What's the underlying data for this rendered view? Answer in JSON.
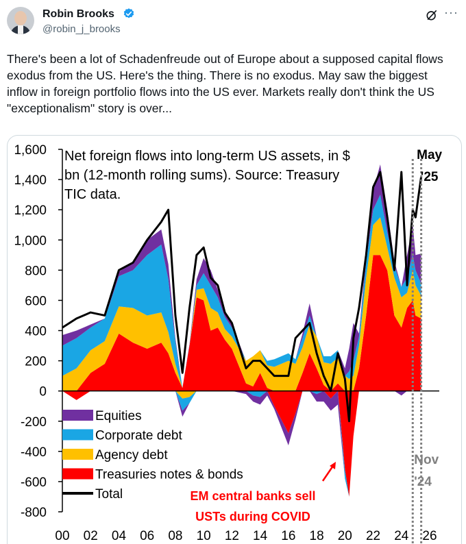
{
  "author": {
    "name": "Robin Brooks",
    "handle": "@robin_j_brooks"
  },
  "menu": {
    "more_label": "···"
  },
  "tweet": {
    "text": "There's been a lot of Schadenfreude out of Europe about a supposed capital flows exodus from the US. Here's the thing. There is no exodus. May saw the biggest inflow in foreign portfolio flows into the US ever. Markets really don't think the US \"exceptionalism\" story is over..."
  },
  "colors": {
    "equities": "#7030a0",
    "corporate_debt": "#1aa6e4",
    "agency_debt": "#ffc000",
    "treasuries": "#ff0000",
    "total": "#000000",
    "marker": "#808080",
    "annotation": "#ff0000"
  },
  "icons": {
    "verified": "verified-badge-icon",
    "grok": "grok-icon",
    "more": "more-icon"
  },
  "chart_data": {
    "type": "area",
    "title_lines": [
      "Net foreign flows into long-term US assets, in $",
      "bn (12-month rolling sums). Source:  Treasury",
      "TIC data."
    ],
    "ylim": [
      -800,
      1600
    ],
    "yticks": [
      "1,600",
      "1,400",
      "1,200",
      "1,000",
      "800",
      "600",
      "400",
      "200",
      "0",
      "-200",
      "-400",
      "-600",
      "-800"
    ],
    "xticks": [
      "00",
      "02",
      "04",
      "06",
      "08",
      "10",
      "12",
      "14",
      "16",
      "18",
      "20",
      "22",
      "24",
      "26"
    ],
    "legend": [
      "Equities",
      "Corporate debt",
      "Agency debt",
      "Treasuries notes & bonds",
      "Total"
    ],
    "x": [
      2000.0,
      2001.0,
      2002.0,
      2003.0,
      2004.0,
      2005.0,
      2006.0,
      2007.0,
      2007.5,
      2008.0,
      2008.5,
      2009.0,
      2009.5,
      2010.0,
      2010.5,
      2011.0,
      2011.5,
      2012.0,
      2013.0,
      2013.5,
      2014.0,
      2014.5,
      2015.0,
      2016.0,
      2016.5,
      2017.0,
      2017.5,
      2018.0,
      2018.5,
      2019.0,
      2019.5,
      2020.0,
      2020.3,
      2020.6,
      2021.0,
      2021.5,
      2022.0,
      2022.5,
      2023.0,
      2023.5,
      2024.0,
      2024.4,
      2024.8,
      2025.0,
      2025.4
    ],
    "series": [
      {
        "name": "Treasuries notes & bonds",
        "values": [
          0,
          -60,
          120,
          180,
          380,
          320,
          280,
          320,
          250,
          120,
          20,
          300,
          620,
          600,
          400,
          420,
          340,
          280,
          50,
          30,
          120,
          20,
          -100,
          -280,
          -150,
          120,
          250,
          150,
          40,
          -50,
          50,
          -520,
          -700,
          -300,
          150,
          500,
          900,
          900,
          800,
          500,
          420,
          550,
          600,
          500,
          480
        ]
      },
      {
        "name": "Agency debt",
        "values": [
          100,
          150,
          150,
          150,
          180,
          230,
          220,
          200,
          140,
          60,
          -50,
          -40,
          50,
          80,
          150,
          100,
          70,
          80,
          150,
          200,
          150,
          150,
          160,
          200,
          180,
          170,
          190,
          210,
          150,
          180,
          170,
          100,
          80,
          100,
          150,
          250,
          200,
          250,
          150,
          250,
          200,
          100,
          200,
          200,
          150
        ]
      },
      {
        "name": "Corporate debt",
        "values": [
          200,
          200,
          150,
          150,
          200,
          250,
          400,
          450,
          350,
          150,
          -80,
          -40,
          30,
          100,
          150,
          100,
          80,
          60,
          0,
          -30,
          -40,
          30,
          50,
          50,
          30,
          60,
          60,
          -20,
          40,
          50,
          50,
          -60,
          50,
          100,
          60,
          100,
          100,
          150,
          100,
          80,
          70,
          100,
          100,
          100,
          80
        ]
      },
      {
        "name": "Equities",
        "values": [
          70,
          50,
          20,
          0,
          30,
          50,
          100,
          100,
          100,
          20,
          -40,
          10,
          40,
          100,
          100,
          50,
          40,
          20,
          -20,
          -40,
          -50,
          -30,
          -20,
          -80,
          -40,
          30,
          80,
          -50,
          -70,
          -80,
          -90,
          50,
          150,
          250,
          20,
          50,
          130,
          200,
          150,
          30,
          -30,
          150,
          200,
          100,
          200
        ]
      },
      {
        "name": "Total",
        "values": [
          420,
          480,
          520,
          500,
          800,
          850,
          1000,
          1120,
          1200,
          500,
          120,
          550,
          900,
          950,
          750,
          700,
          520,
          450,
          150,
          200,
          200,
          150,
          100,
          100,
          350,
          400,
          450,
          250,
          100,
          0,
          250,
          80,
          -200,
          350,
          550,
          900,
          1350,
          1450,
          1150,
          800,
          1450,
          700,
          1200,
          1150,
          1420
        ]
      }
    ],
    "annotations": {
      "may": [
        "May",
        "'25"
      ],
      "nov": [
        "Nov",
        "'24"
      ],
      "em": [
        "EM central banks sell",
        "USTs during COVID"
      ]
    },
    "markers": [
      {
        "x": 2025.4,
        "label": "May '25"
      },
      {
        "x": 2024.8,
        "label": "Nov '24"
      }
    ],
    "grid": false
  }
}
